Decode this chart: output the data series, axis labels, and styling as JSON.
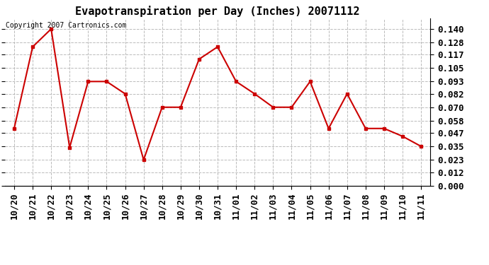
{
  "title": "Evapotranspiration per Day (Inches) 20071112",
  "copyright_text": "Copyright 2007 Cartronics.com",
  "x_labels": [
    "10/20",
    "10/21",
    "10/22",
    "10/23",
    "10/24",
    "10/25",
    "10/26",
    "10/27",
    "10/28",
    "10/29",
    "10/30",
    "10/31",
    "11/01",
    "11/02",
    "11/03",
    "11/04",
    "11/05",
    "11/06",
    "11/07",
    "11/08",
    "11/09",
    "11/10",
    "11/11"
  ],
  "y_values": [
    0.051,
    0.124,
    0.14,
    0.034,
    0.093,
    0.093,
    0.082,
    0.023,
    0.07,
    0.07,
    0.113,
    0.124,
    0.093,
    0.082,
    0.07,
    0.07,
    0.093,
    0.051,
    0.082,
    0.051,
    0.051,
    0.044,
    0.035
  ],
  "y_ticks": [
    0.0,
    0.012,
    0.023,
    0.035,
    0.047,
    0.058,
    0.07,
    0.082,
    0.093,
    0.105,
    0.117,
    0.128,
    0.14
  ],
  "ylim": [
    0.0,
    0.1493
  ],
  "line_color": "#cc0000",
  "marker": "s",
  "marker_size": 3,
  "line_width": 1.5,
  "bg_color": "#ffffff",
  "grid_color": "#bbbbbb",
  "title_fontsize": 11,
  "tick_fontsize": 9,
  "copyright_fontsize": 7
}
